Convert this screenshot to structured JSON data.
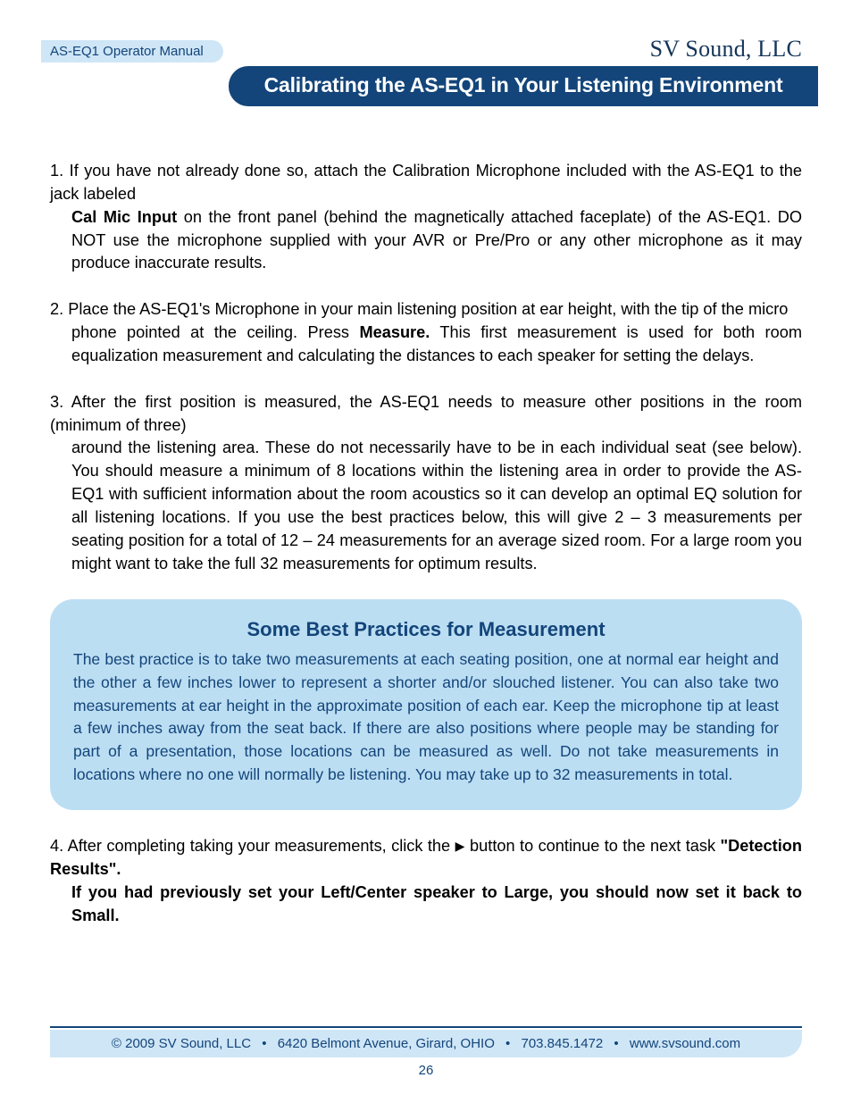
{
  "header": {
    "pill": "AS-EQ1 Operator Manual",
    "company": "SV Sound, LLC",
    "title": "Calibrating the AS-EQ1 in Your Listening Environment"
  },
  "steps": {
    "s1": {
      "num": "1.",
      "line1": "If you have not already done so, attach the Calibration Microphone included with the AS-EQ1 to the jack labeled",
      "bold1": "Cal Mic Input",
      "rest": " on the front panel (behind the magnetically attached faceplate) of the AS-EQ1. DO NOT use the microphone supplied with your AVR or Pre/Pro or any other microphone as it may produce inaccurate results."
    },
    "s2": {
      "num": "2.",
      "line1": "Place the AS-EQ1's Microphone in your main listening position at ear height, with the tip of the micro",
      "line2a": "phone pointed at the ceiling. Press ",
      "bold1": "Measure.",
      "line2b": " This first measurement is used for both room equalization measurement and calculating the distances to each speaker for setting the delays."
    },
    "s3": {
      "num": "3.",
      "line1": "After the first position is measured, the AS-EQ1 needs to measure other positions in the room (minimum of three)",
      "rest": "around the listening area. These do not necessarily have to be in each individual seat (see below). You should measure a minimum of 8 locations within the listening area in order to provide the AS-EQ1 with sufficient information about the room acoustics so it can develop an optimal EQ solution for all listening locations. If you use the best practices below, this will give 2 – 3 measurements per seating position for a total of 12 – 24 measurements for an average sized room. For a large room you might want to take the full 32 measurements for optimum results."
    },
    "s4": {
      "num": "4.",
      "a": "After completing taking your measurements, click the ",
      "tri": "▶",
      "b": " button to continue to the next task ",
      "bold1": "\"Detection Results\".",
      "bold2": "If you had previously set your Left/Center speaker to Large, you should now set it back to Small."
    }
  },
  "callout": {
    "title": "Some Best Practices for Measurement",
    "body": "The best practice is to take two measurements at each seating position, one at normal ear height and the other a few inches lower to represent a shorter and/or slouched listener. You can also take two measurements at ear height in the approximate position of each ear. Keep the microphone tip at least a few inches away from the seat back. If there are also positions where people may be standing for part of a presentation, those locations can be measured as well. Do not take measurements in locations where no one will normally be listening. You may take up to 32 measurements in total."
  },
  "footer": {
    "copyright": "© 2009 SV Sound, LLC",
    "address": "6420 Belmont Avenue, Girard, OHIO",
    "phone": "703.845.1472",
    "url": "www.svsound.com",
    "page": "26"
  },
  "colors": {
    "brand_blue": "#13457a",
    "light_blue": "#cfe6f7",
    "callout_blue": "#bcdef3"
  }
}
